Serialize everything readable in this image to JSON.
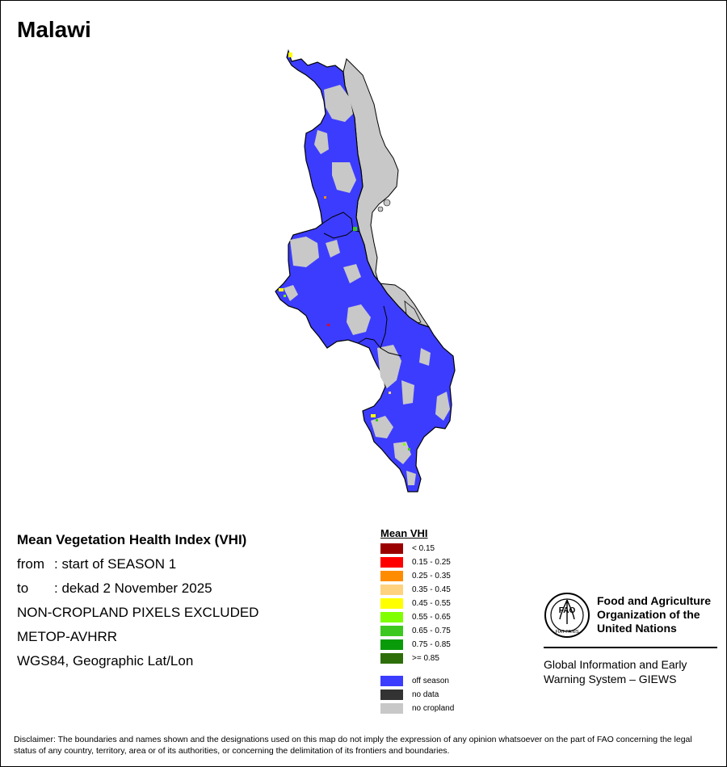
{
  "title": "Malawi",
  "info": {
    "heading": "Mean Vegetation Health Index (VHI)",
    "from_label": "from",
    "from_value": ": start of SEASON 1",
    "to_label": "to",
    "to_value": ": dekad 2 November 2025",
    "note": "NON-CROPLAND PIXELS EXCLUDED",
    "sensor": "METOP-AVHRR",
    "projection": "WGS84, Geographic Lat/Lon"
  },
  "legend": {
    "title": "Mean VHI",
    "classes": [
      {
        "label": "< 0.15",
        "color": "#9b0000"
      },
      {
        "label": "0.15 - 0.25",
        "color": "#ff0000"
      },
      {
        "label": "0.25 - 0.35",
        "color": "#ff8c00"
      },
      {
        "label": "0.35 - 0.45",
        "color": "#ffd27f"
      },
      {
        "label": "0.45 - 0.55",
        "color": "#ffff00"
      },
      {
        "label": "0.55 - 0.65",
        "color": "#7fff00"
      },
      {
        "label": "0.65 - 0.75",
        "color": "#3cc81e"
      },
      {
        "label": "0.75 - 0.85",
        "color": "#0a9b0a"
      },
      {
        "label": ">= 0.85",
        "color": "#2d6e0a"
      }
    ],
    "other": [
      {
        "label": "off season",
        "color": "#3c3cff"
      },
      {
        "label": "no data",
        "color": "#333333"
      },
      {
        "label": "no cropland",
        "color": "#c8c8c8"
      }
    ]
  },
  "organization": {
    "logo_text": "FAO",
    "logo_motto": "FIAT PANIS",
    "name_lines": [
      "Food and Agriculture",
      "Organization of the",
      "United Nations"
    ],
    "system_lines": [
      "Global Information and Early",
      "Warning System – GIEWS"
    ]
  },
  "disclaimer": "Disclaimer: The boundaries and names shown and the designations used on this map do not imply the expression of any opinion whatsoever on the part of FAO concerning the legal status of any country, territory, area or of its authorities, or concerning the delimitation of its frontiers and boundaries."
}
